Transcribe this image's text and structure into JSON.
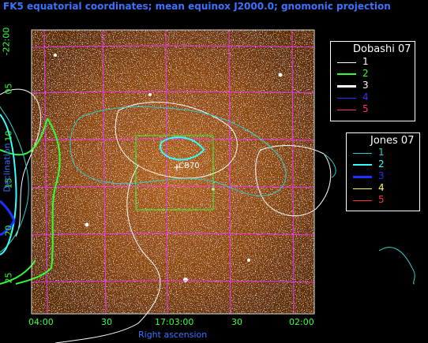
{
  "title": "FK5 equatorial coordinates; mean equinox J2000.0; gnomonic projection",
  "axes": {
    "x_label": "Right ascension",
    "y_label": "Declination",
    "x_ticks": [
      "04:00",
      "30",
      "17:03:00",
      "30",
      "02:00"
    ],
    "y_ticks": [
      "-22:00",
      "05",
      "10",
      "15",
      "20",
      "25"
    ]
  },
  "source_label": "CB70",
  "legends": [
    {
      "title": "Dobashi 07",
      "entries": [
        {
          "label": "1",
          "color": "#ffffff",
          "width": 1
        },
        {
          "label": "2",
          "color": "#33ff33",
          "width": 2
        },
        {
          "label": "3",
          "color": "#ffffff",
          "width": 3
        },
        {
          "label": "4",
          "color": "#3333ff",
          "width": 1
        },
        {
          "label": "5",
          "color": "#ff3366",
          "width": 1
        }
      ]
    },
    {
      "title": "Jones 07",
      "entries": [
        {
          "label": "1",
          "color": "#33cccc",
          "width": 1
        },
        {
          "label": "2",
          "color": "#33ffff",
          "width": 2
        },
        {
          "label": "3",
          "color": "#1a33ff",
          "width": 3
        },
        {
          "label": "4",
          "color": "#ffff66",
          "width": 1
        },
        {
          "label": "5",
          "color": "#ff3333",
          "width": 1
        }
      ]
    }
  ],
  "colors": {
    "grid": "#ff33ff",
    "tick_labels": "#33ff33",
    "axis_labels": "#3366ff",
    "title": "#3366ff",
    "image_base": "#6b3306",
    "box": "#33ff33"
  }
}
